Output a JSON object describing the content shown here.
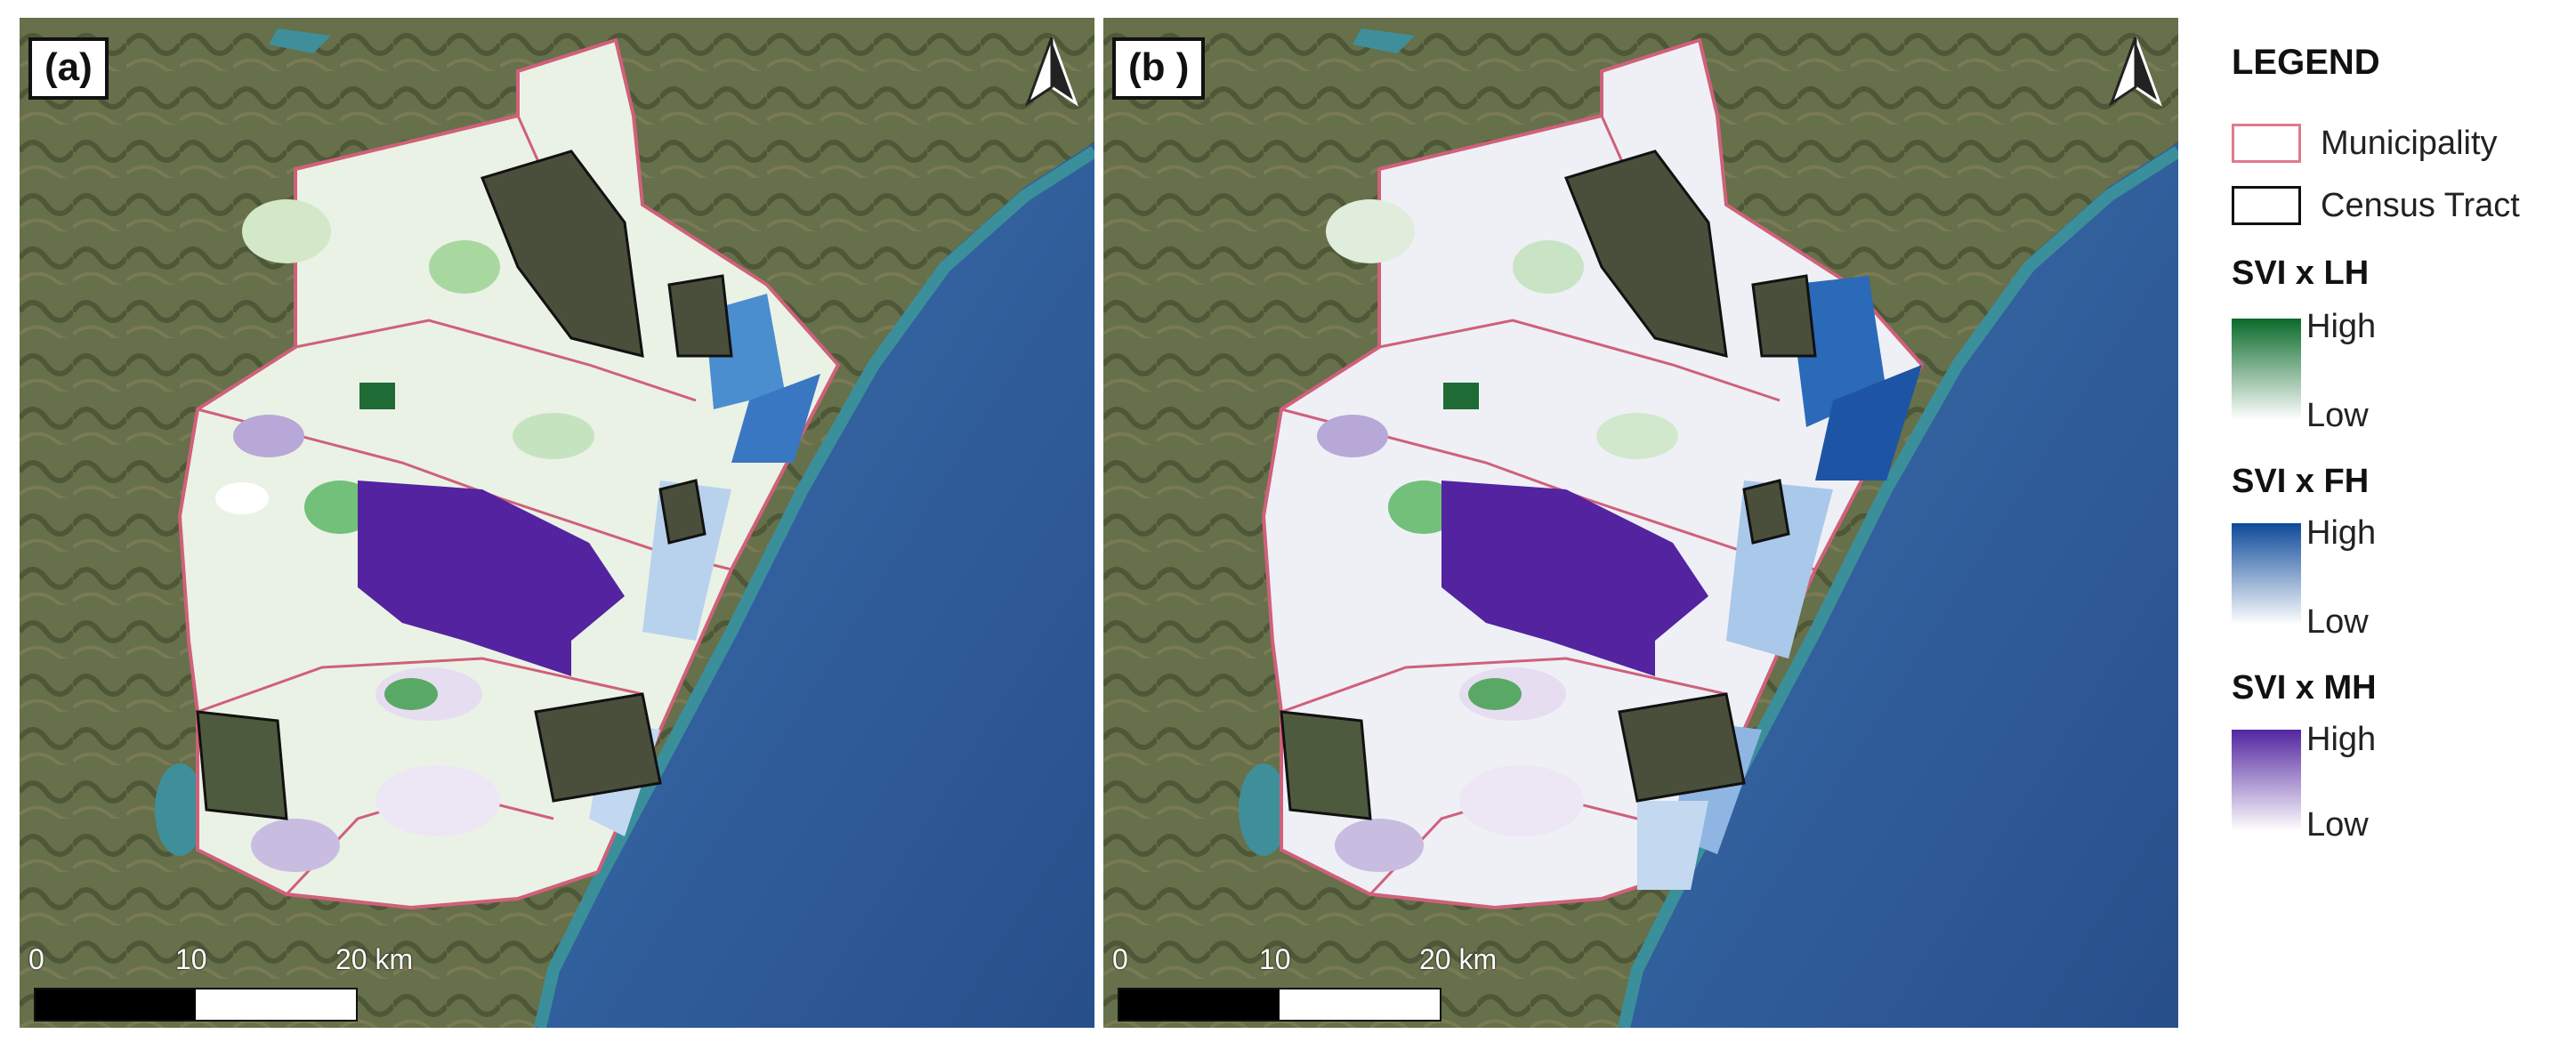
{
  "panels": [
    {
      "id": "a",
      "label": "(a)"
    },
    {
      "id": "b",
      "label": "(b )"
    }
  ],
  "scale": {
    "ticks": [
      "0",
      "10",
      "20 km"
    ]
  },
  "legend": {
    "title": "LEGEND",
    "boundaries": [
      {
        "label": "Municipality",
        "color": "#e07a8e"
      },
      {
        "label": "Census Tract",
        "color": "#111111"
      }
    ],
    "groups": [
      {
        "title": "SVI x LH",
        "high": "High",
        "low": "Low",
        "high_color": "#0a6a2a",
        "low_color": "#ffffff"
      },
      {
        "title": "SVI x FH",
        "high": "High",
        "low": "Low",
        "high_color": "#0e4a9a",
        "low_color": "#ffffff"
      },
      {
        "title": "SVI x MH",
        "high": "High",
        "low": "Low",
        "high_color": "#5226a0",
        "low_color": "#ffffff"
      }
    ]
  },
  "colors": {
    "land": "#5f6b47",
    "sea": "#2f5f9a",
    "municipality_line": "#d0607a",
    "census_line": "#111111"
  }
}
